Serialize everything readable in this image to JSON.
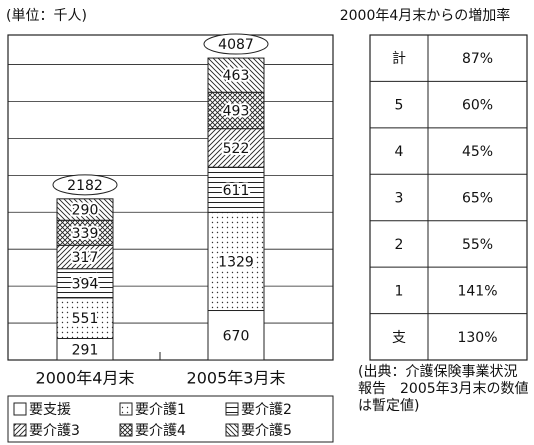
{
  "chart_data": {
    "type": "stacked_bar",
    "unit_label": "(単位：千人)",
    "categories": [
      "2000年4月末",
      "2005年3月末"
    ],
    "series": [
      {
        "name": "要支援",
        "color": "#ffffff",
        "pattern": "none",
        "values": [
          291,
          670
        ]
      },
      {
        "name": "要介護1",
        "color": "#ffffff",
        "pattern": "dots",
        "values": [
          551,
          1329
        ]
      },
      {
        "name": "要介護2",
        "color": "#ffffff",
        "pattern": "horizontal",
        "values": [
          394,
          611
        ]
      },
      {
        "name": "要介護3",
        "color": "#ffffff",
        "pattern": "diagonal",
        "values": [
          317,
          522
        ]
      },
      {
        "name": "要介護4",
        "color": "#ffffff",
        "pattern": "crosshatch",
        "values": [
          339,
          493
        ]
      },
      {
        "name": "要介護5",
        "color": "#ffffff",
        "pattern": "backdiagonal",
        "values": [
          290,
          463
        ]
      }
    ],
    "totals": [
      2182,
      4087
    ],
    "ylim": [
      0,
      4400
    ],
    "yticks": [
      500,
      1000,
      1500,
      2000,
      2500,
      3000,
      3500,
      4000
    ],
    "grid": true
  },
  "table": {
    "title": "2000年4月末からの増加率",
    "rows": [
      [
        "計",
        "87%"
      ],
      [
        "5",
        "60%"
      ],
      [
        "4",
        "45%"
      ],
      [
        "3",
        "65%"
      ],
      [
        "2",
        "55%"
      ],
      [
        "1",
        "141%"
      ],
      [
        "支",
        "130%"
      ]
    ]
  },
  "note": "(出典：介護保険事業状況報告　2005年3月末の数値は暫定値)"
}
